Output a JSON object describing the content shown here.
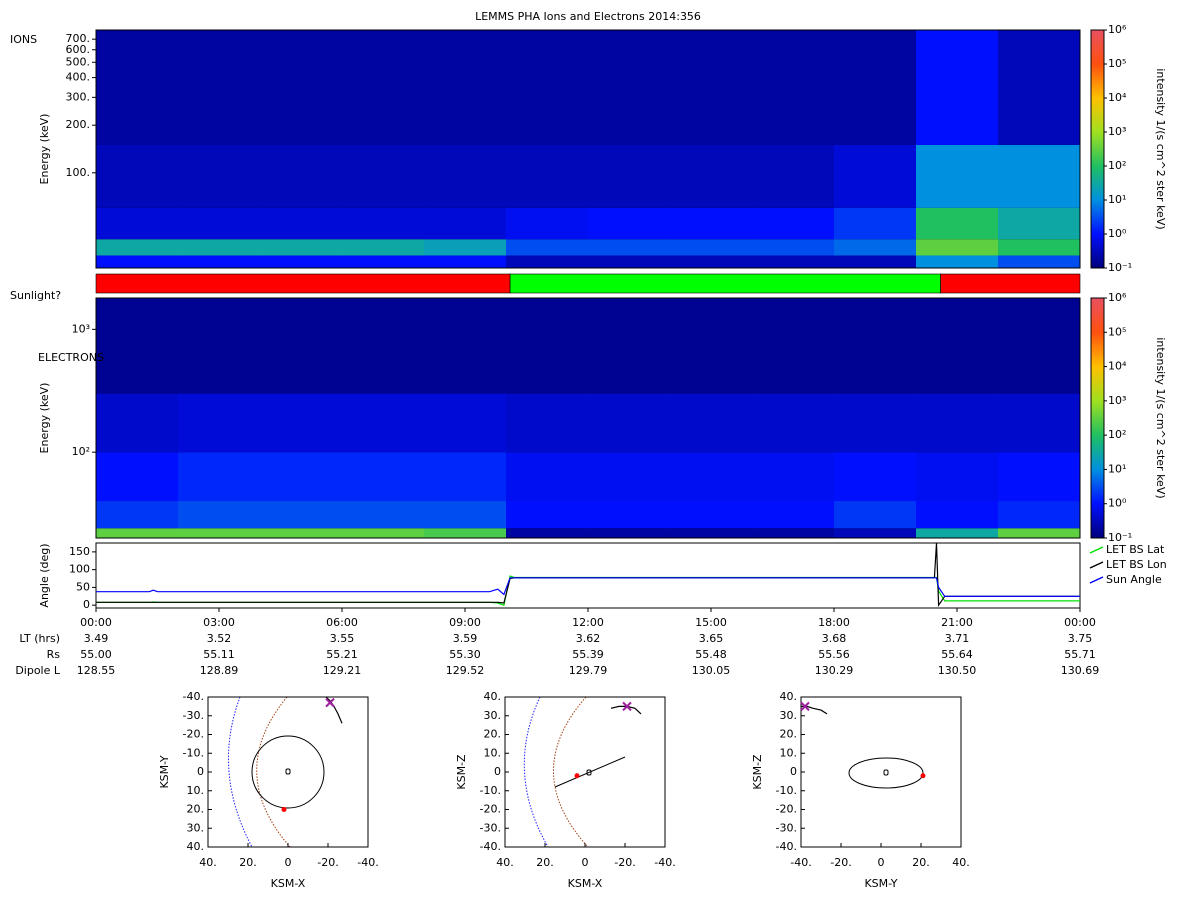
{
  "chart_data": [
    {
      "type": "heatmap",
      "title": "LEMMS PHA Ions and Electrons  2014:356",
      "label": "IONS",
      "ylabel": "Energy (keV)",
      "log": true,
      "xlim": [
        0,
        24
      ],
      "ylim": [
        25,
        800
      ],
      "yticks": [
        {
          "value": 100,
          "label": "100."
        },
        {
          "value": 200,
          "label": "200."
        },
        {
          "value": 300,
          "label": "300."
        },
        {
          "value": 400,
          "label": "400."
        },
        {
          "value": 500,
          "label": "500."
        },
        {
          "value": 600,
          "label": "600."
        },
        {
          "value": 700,
          "label": "700."
        }
      ],
      "x_bins": [
        0,
        2,
        4,
        6,
        8,
        10,
        12,
        14,
        16,
        18,
        20,
        22,
        24
      ],
      "y_bins": [
        25,
        30,
        38,
        60,
        150,
        800
      ],
      "values": [
        [
          1,
          1,
          1,
          1,
          1,
          0.3,
          0.3,
          0.3,
          0.3,
          0.3,
          10,
          3
        ],
        [
          30,
          30,
          30,
          30,
          20,
          3,
          3,
          3,
          3,
          5,
          300,
          100
        ],
        [
          0.5,
          0.5,
          0.5,
          0.5,
          0.5,
          0.8,
          1,
          1,
          1,
          2,
          100,
          30
        ],
        [
          0.3,
          0.3,
          0.3,
          0.3,
          0.3,
          0.3,
          0.3,
          0.3,
          0.3,
          0.5,
          10,
          10
        ],
        [
          0.2,
          0.2,
          0.2,
          0.2,
          0.2,
          0.2,
          0.2,
          0.2,
          0.2,
          0.2,
          1,
          0.3
        ]
      ],
      "colorbar": {
        "label": "intensity 1/(s cm^2 ster keV)",
        "lim": [
          0.1,
          1000000
        ],
        "log": true,
        "ticks": [
          {
            "value": 0.1,
            "label": "10⁻¹"
          },
          {
            "value": 1,
            "label": "10⁰"
          },
          {
            "value": 10,
            "label": "10¹"
          },
          {
            "value": 100,
            "label": "10²"
          },
          {
            "value": 1000,
            "label": "10³"
          },
          {
            "value": 10000,
            "label": "10⁴"
          },
          {
            "value": 100000,
            "label": "10⁵"
          },
          {
            "value": 1000000,
            "label": "10⁶"
          }
        ],
        "colormap": [
          "#00007a",
          "#0010ff",
          "#0090e0",
          "#20c060",
          "#a0e020",
          "#ffc000",
          "#ff5010",
          "#e85060"
        ]
      }
    },
    {
      "type": "timeline",
      "label": "Sunlight?",
      "xlim": [
        0,
        24
      ],
      "segments": [
        {
          "start": 0,
          "end": 10.1,
          "color": "#ff0000"
        },
        {
          "start": 10.1,
          "end": 20.6,
          "color": "#00ff00"
        },
        {
          "start": 20.6,
          "end": 24,
          "color": "#ff0000"
        }
      ]
    },
    {
      "type": "heatmap",
      "label": "ELECTRONS",
      "ylabel": "Energy (keV)",
      "log": true,
      "xlim": [
        0,
        24
      ],
      "ylim": [
        20,
        1800
      ],
      "yticks": [
        {
          "value": 100,
          "label": "10²"
        },
        {
          "value": 1000,
          "label": "10³"
        }
      ],
      "x_bins": [
        0,
        2,
        4,
        6,
        8,
        10,
        12,
        14,
        16,
        18,
        20,
        22,
        24
      ],
      "y_bins": [
        20,
        24,
        40,
        100,
        300,
        1800
      ],
      "values": [
        [
          300,
          300,
          300,
          300,
          200,
          0.2,
          0.2,
          0.2,
          0.2,
          0.3,
          30,
          300
        ],
        [
          2,
          3,
          3,
          3,
          3,
          1,
          1,
          1,
          1,
          2,
          1,
          1.5
        ],
        [
          1,
          1.5,
          1.5,
          1.5,
          1.5,
          0.8,
          0.8,
          0.8,
          0.8,
          1,
          0.8,
          1
        ],
        [
          0.4,
          0.5,
          0.5,
          0.5,
          0.5,
          0.4,
          0.4,
          0.4,
          0.4,
          0.4,
          0.4,
          0.4
        ],
        [
          0.15,
          0.15,
          0.15,
          0.15,
          0.15,
          0.15,
          0.15,
          0.15,
          0.15,
          0.15,
          0.15,
          0.15
        ]
      ],
      "colorbar": {
        "label": "intensity 1/(s cm^2 ster keV)",
        "lim": [
          0.1,
          1000000
        ],
        "log": true,
        "ticks": [
          {
            "value": 0.1,
            "label": "10⁻¹"
          },
          {
            "value": 1,
            "label": "10⁰"
          },
          {
            "value": 10,
            "label": "10¹"
          },
          {
            "value": 100,
            "label": "10²"
          },
          {
            "value": 1000,
            "label": "10³"
          },
          {
            "value": 10000,
            "label": "10⁴"
          },
          {
            "value": 100000,
            "label": "10⁵"
          },
          {
            "value": 1000000,
            "label": "10⁶"
          }
        ],
        "colormap": [
          "#00007a",
          "#0010ff",
          "#0090e0",
          "#20c060",
          "#a0e020",
          "#ffc000",
          "#ff5010",
          "#e85060"
        ]
      }
    },
    {
      "type": "line",
      "ylabel": "Angle (deg)",
      "xlim": [
        0,
        24
      ],
      "ylim": [
        -8,
        175
      ],
      "yticks": [
        0,
        50,
        100,
        150
      ],
      "xticks": [
        {
          "value": 0,
          "label": "00:00"
        },
        {
          "value": 3,
          "label": "03:00"
        },
        {
          "value": 6,
          "label": "06:00"
        },
        {
          "value": 9,
          "label": "09:00"
        },
        {
          "value": 12,
          "label": "12:00"
        },
        {
          "value": 15,
          "label": "15:00"
        },
        {
          "value": 18,
          "label": "18:00"
        },
        {
          "value": 21,
          "label": "21:00"
        },
        {
          "value": 24,
          "label": "00:00"
        }
      ],
      "x": [
        0,
        1.3,
        1.4,
        1.5,
        9.6,
        9.8,
        9.95,
        10.1,
        10.2,
        20.4,
        20.45,
        20.5,
        20.55,
        20.7,
        24
      ],
      "series": [
        {
          "name": "LET BS Lat",
          "color": "#00e000",
          "values": [
            8,
            8,
            9,
            8,
            8,
            6,
            0,
            82,
            78,
            78,
            78,
            78,
            40,
            12,
            12
          ]
        },
        {
          "name": "LET BS Lon",
          "color": "#000000",
          "values": [
            8,
            8,
            8,
            8,
            8,
            8,
            6,
            75,
            77,
            77,
            77,
            175,
            0,
            25,
            25
          ]
        },
        {
          "name": "Sun Angle",
          "color": "#0000ff",
          "values": [
            38,
            38,
            42,
            38,
            38,
            45,
            30,
            77,
            77,
            77,
            77,
            77,
            50,
            25,
            25
          ]
        }
      ]
    },
    {
      "type": "orbit",
      "xlabel": "KSM-X",
      "ylabel": "KSM-Y",
      "xlim": [
        40,
        -40
      ],
      "ylim": [
        40,
        -40
      ],
      "xticks": [
        {
          "value": 40,
          "label": "40."
        },
        {
          "value": 20,
          "label": "20."
        },
        0,
        {
          "value": -20,
          "label": "-20."
        },
        {
          "value": -40,
          "label": "-40."
        }
      ],
      "yticks": [
        {
          "value": -40,
          "label": "-40."
        },
        {
          "value": -30,
          "label": "-30."
        },
        {
          "value": -20,
          "label": "-20."
        },
        {
          "value": -10,
          "label": "-10."
        },
        0,
        {
          "value": 10,
          "label": "10."
        },
        {
          "value": 20,
          "label": "20."
        },
        {
          "value": 30,
          "label": "30."
        },
        {
          "value": 40,
          "label": "40."
        }
      ],
      "trajectory": {
        "x": [
          -19,
          -21,
          -23,
          -25,
          -27
        ],
        "y": [
          -40,
          -38,
          -35,
          -31,
          -26
        ]
      },
      "position": {
        "x": -21,
        "y": -37,
        "color": "#a020a0"
      },
      "moon": {
        "x": 2,
        "y": 20,
        "color": "#ff0000"
      }
    },
    {
      "type": "orbit",
      "xlabel": "KSM-X",
      "ylabel": "KSM-Z",
      "xlim": [
        40,
        -40
      ],
      "ylim": [
        -40,
        40
      ],
      "xticks": [
        {
          "value": 40,
          "label": "40."
        },
        {
          "value": 20,
          "label": "20."
        },
        0,
        {
          "value": -20,
          "label": "-20."
        },
        {
          "value": -40,
          "label": "-40."
        }
      ],
      "yticks": [
        {
          "value": 40,
          "label": "40."
        },
        {
          "value": 30,
          "label": "30."
        },
        {
          "value": 20,
          "label": "20."
        },
        {
          "value": 10,
          "label": "10."
        },
        0,
        {
          "value": -10,
          "label": "-10."
        },
        {
          "value": -20,
          "label": "-20."
        },
        {
          "value": -30,
          "label": "-30."
        },
        {
          "value": -40,
          "label": "-40."
        }
      ],
      "trajectory": {
        "x": [
          -13,
          -17,
          -21,
          -25,
          -28
        ],
        "y": [
          34,
          35,
          35,
          34,
          31
        ]
      },
      "position": {
        "x": -21,
        "y": 35,
        "color": "#a020a0"
      },
      "moon": {
        "x": 4,
        "y": -2,
        "color": "#ff0000"
      }
    },
    {
      "type": "orbit",
      "xlabel": "KSM-Y",
      "ylabel": "KSM-Z",
      "xlim": [
        -40,
        40
      ],
      "ylim": [
        -40,
        40
      ],
      "xticks": [
        {
          "value": -40,
          "label": "-40."
        },
        {
          "value": -20,
          "label": "-20."
        },
        0,
        {
          "value": 20,
          "label": "20."
        },
        {
          "value": 40,
          "label": "40."
        }
      ],
      "yticks": [
        {
          "value": 40,
          "label": "40."
        },
        {
          "value": 30,
          "label": "30."
        },
        {
          "value": 20,
          "label": "20."
        },
        {
          "value": 10,
          "label": "10."
        },
        0,
        {
          "value": -10,
          "label": "-10."
        },
        {
          "value": -20,
          "label": "-20."
        },
        {
          "value": -30,
          "label": "-30."
        },
        {
          "value": -40,
          "label": "-40."
        }
      ],
      "trajectory": {
        "x": [
          -40,
          -37,
          -34,
          -30,
          -27
        ],
        "y": [
          35,
          35,
          34,
          33,
          31
        ]
      },
      "position": {
        "x": -38,
        "y": 35,
        "color": "#a020a0"
      },
      "moon": {
        "x": 21,
        "y": -2,
        "color": "#ff0000"
      }
    }
  ],
  "ephemeris": {
    "rows": [
      {
        "label": "LT (hrs)",
        "values": [
          "3.49",
          "3.52",
          "3.55",
          "3.59",
          "3.62",
          "3.65",
          "3.68",
          "3.71",
          "3.75"
        ]
      },
      {
        "label": "Rs",
        "values": [
          "55.00",
          "55.11",
          "55.21",
          "55.30",
          "55.39",
          "55.48",
          "55.56",
          "55.64",
          "55.71"
        ]
      },
      {
        "label": "Dipole L",
        "values": [
          "128.55",
          "128.89",
          "129.21",
          "129.52",
          "129.79",
          "130.05",
          "130.29",
          "130.50",
          "130.69"
        ]
      }
    ]
  }
}
